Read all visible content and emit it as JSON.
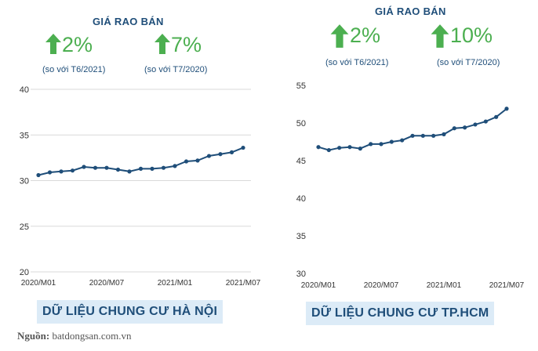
{
  "source": {
    "label": "Nguồn:",
    "site": "batdongsan.com.vn"
  },
  "colors": {
    "line": "#1f4e79",
    "arrow": "#4caf50",
    "heading": "#1f4e79",
    "caption_bg": "#dcebf7",
    "grid": "#d9d9d9"
  },
  "chart_data": [
    {
      "type": "line",
      "title": "GIÁ RAO BÁN",
      "stats": [
        {
          "value": "2%",
          "note": "(so với T6/2021)",
          "direction": "up"
        },
        {
          "value": "7%",
          "note": "(so với T7/2020)",
          "direction": "up"
        }
      ],
      "caption": "DỮ LIỆU CHUNG CƯ HÀ NỘI",
      "ylim": [
        20,
        40
      ],
      "yticks": [
        20,
        25,
        30,
        35,
        40
      ],
      "xtick_labels": [
        "2020/M01",
        "2020/M07",
        "2021/M01",
        "2021/M07"
      ],
      "xtick_index": [
        0,
        6,
        12,
        18
      ],
      "grid": "horizontal",
      "x": [
        "2020/M01",
        "2020/M02",
        "2020/M03",
        "2020/M04",
        "2020/M05",
        "2020/M06",
        "2020/M07",
        "2020/M08",
        "2020/M09",
        "2020/M10",
        "2020/M11",
        "2020/M12",
        "2021/M01",
        "2021/M02",
        "2021/M03",
        "2021/M04",
        "2021/M05",
        "2021/M06",
        "2021/M07"
      ],
      "values": [
        30.6,
        30.9,
        31.0,
        31.1,
        31.5,
        31.4,
        31.4,
        31.2,
        31.0,
        31.3,
        31.3,
        31.4,
        31.6,
        32.1,
        32.2,
        32.7,
        32.9,
        33.1,
        33.6
      ]
    },
    {
      "type": "line",
      "title": "GIÁ RAO BÁN",
      "stats": [
        {
          "value": "2%",
          "note": "(so với T6/2021)",
          "direction": "up"
        },
        {
          "value": "10%",
          "note": "(so với T7/2020)",
          "direction": "up"
        }
      ],
      "caption": "DỮ LIỆU CHUNG CƯ TP.HCM",
      "ylim": [
        30,
        55
      ],
      "yticks": [
        30,
        35,
        40,
        45,
        50,
        55
      ],
      "xtick_labels": [
        "2020/M01",
        "2020/M07",
        "2021/M01",
        "2021/M07"
      ],
      "xtick_index": [
        0,
        6,
        12,
        18
      ],
      "grid": "none",
      "x": [
        "2020/M01",
        "2020/M02",
        "2020/M03",
        "2020/M04",
        "2020/M05",
        "2020/M06",
        "2020/M07",
        "2020/M08",
        "2020/M09",
        "2020/M10",
        "2020/M11",
        "2020/M12",
        "2021/M01",
        "2021/M02",
        "2021/M03",
        "2021/M04",
        "2021/M05",
        "2021/M06",
        "2021/M07"
      ],
      "values": [
        46.8,
        46.4,
        46.7,
        46.8,
        46.6,
        47.2,
        47.2,
        47.5,
        47.7,
        48.3,
        48.3,
        48.3,
        48.5,
        49.3,
        49.4,
        49.8,
        50.2,
        50.8,
        51.9
      ]
    }
  ]
}
